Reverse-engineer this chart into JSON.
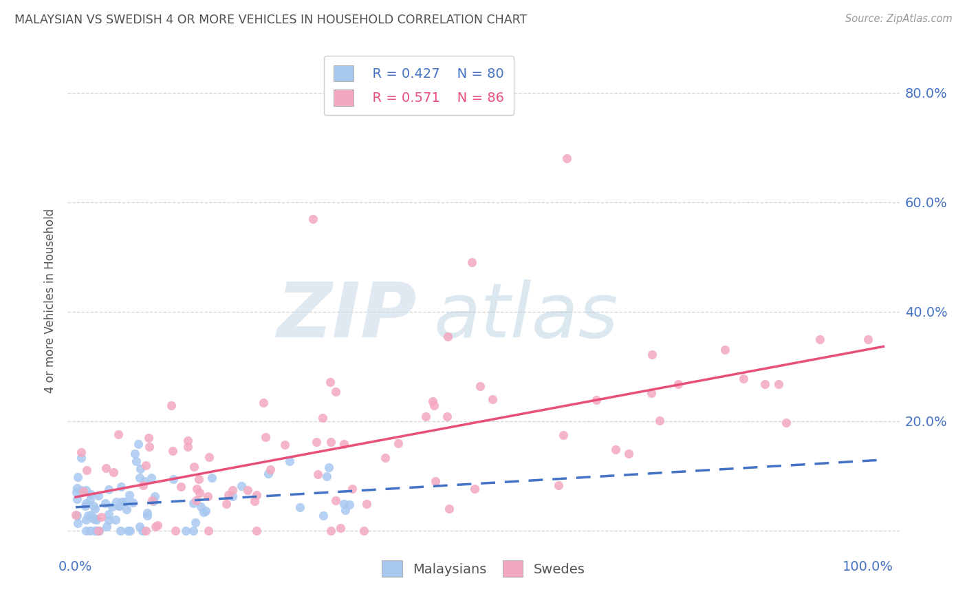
{
  "title": "MALAYSIAN VS SWEDISH 4 OR MORE VEHICLES IN HOUSEHOLD CORRELATION CHART",
  "source": "Source: ZipAtlas.com",
  "ylabel": "4 or more Vehicles in Household",
  "malaysian_color": "#a8c8f0",
  "swedish_color": "#f4a8c0",
  "malaysian_line_color": "#4472c4",
  "swedish_line_color": "#e8507a",
  "malaysian_R": 0.427,
  "malaysian_N": 80,
  "swedish_R": 0.571,
  "swedish_N": 86,
  "watermark_zip": "ZIP",
  "watermark_atlas": "atlas",
  "background_color": "#ffffff",
  "grid_color": "#d0d0d0",
  "title_color": "#505050",
  "tick_label_color": "#4472c4",
  "x_ticks": [
    0.0,
    0.2,
    0.4,
    0.6,
    0.8,
    1.0
  ],
  "x_tick_labels": [
    "0.0%",
    "",
    "",
    "",
    "",
    "100.0%"
  ],
  "y_ticks": [
    0.0,
    0.2,
    0.4,
    0.6,
    0.8
  ],
  "y_right_labels": [
    "",
    "20.0%",
    "40.0%",
    "60.0%",
    "80.0%"
  ],
  "xlim": [
    -0.01,
    1.04
  ],
  "ylim": [
    -0.04,
    0.88
  ],
  "figsize": [
    14.06,
    8.92
  ],
  "dpi": 100
}
